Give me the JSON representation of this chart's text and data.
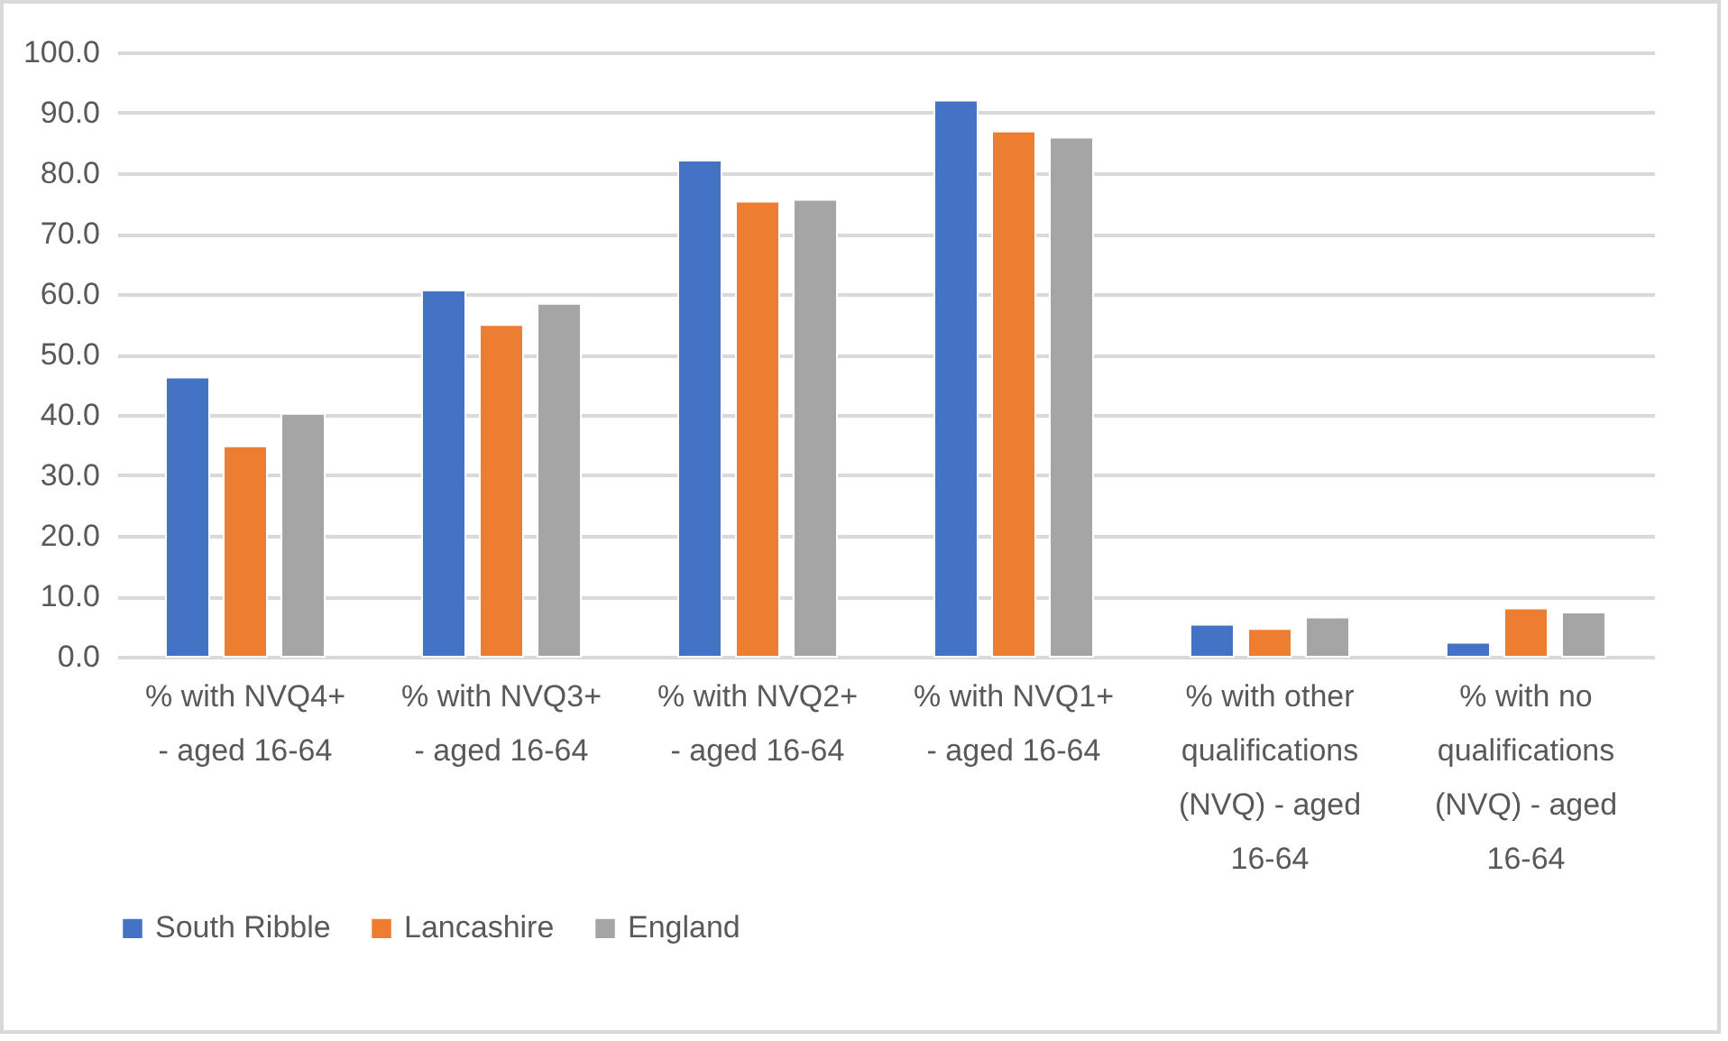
{
  "chart_data": {
    "type": "bar",
    "categories": [
      "% with NVQ4+ - aged 16-64",
      "% with NVQ3+ - aged 16-64",
      "% with NVQ2+ - aged 16-64",
      "% with NVQ1+ - aged 16-64",
      "% with other qualifications (NVQ) - aged 16-64",
      "% with no qualifications (NVQ) - aged 16-64"
    ],
    "series": [
      {
        "name": "South Ribble",
        "color": "#4472c4",
        "values": [
          46.2,
          60.6,
          82.1,
          92.0,
          5.3,
          2.3
        ]
      },
      {
        "name": "Lancashire",
        "color": "#ed7d31",
        "values": [
          34.8,
          54.9,
          75.3,
          86.9,
          4.6,
          8.0
        ]
      },
      {
        "name": "England",
        "color": "#a5a5a5",
        "values": [
          40.2,
          58.4,
          75.6,
          85.9,
          6.5,
          7.3
        ]
      }
    ],
    "ylim": [
      0,
      100
    ],
    "yticks": [
      {
        "value": 0,
        "label": "0.0"
      },
      {
        "value": 10,
        "label": "10.0"
      },
      {
        "value": 20,
        "label": "20.0"
      },
      {
        "value": 30,
        "label": "30.0"
      },
      {
        "value": 40,
        "label": "40.0"
      },
      {
        "value": 50,
        "label": "50.0"
      },
      {
        "value": 60,
        "label": "60.0"
      },
      {
        "value": 70,
        "label": "70.0"
      },
      {
        "value": 80,
        "label": "80.0"
      },
      {
        "value": 90,
        "label": "90.0"
      },
      {
        "value": 100,
        "label": "100.0"
      }
    ],
    "grid": "y",
    "legend": "bottom"
  }
}
